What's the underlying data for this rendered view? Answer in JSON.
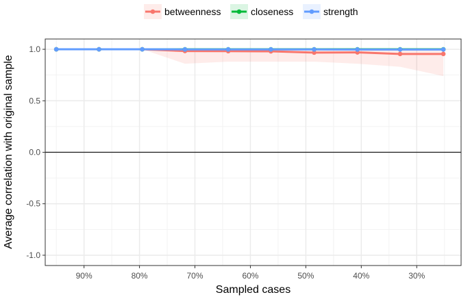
{
  "chart_data": {
    "type": "line",
    "xlabel": "Sampled cases",
    "ylabel": "Average correlation with original sample",
    "x_ticks": [
      {
        "value": 0.9,
        "label": "90%"
      },
      {
        "value": 0.8,
        "label": "80%"
      },
      {
        "value": 0.7,
        "label": "70%"
      },
      {
        "value": 0.6,
        "label": "60%"
      },
      {
        "value": 0.5,
        "label": "50%"
      },
      {
        "value": 0.4,
        "label": "40%"
      },
      {
        "value": 0.3,
        "label": "30%"
      }
    ],
    "y_ticks": [
      {
        "value": 1.0,
        "label": "1.0"
      },
      {
        "value": 0.5,
        "label": "0.5"
      },
      {
        "value": 0.0,
        "label": "0.0"
      },
      {
        "value": -0.5,
        "label": "-0.5"
      },
      {
        "value": -1.0,
        "label": "-1.0"
      }
    ],
    "xlim": [
      0.97,
      0.22
    ],
    "ylim": [
      -1.1,
      1.1
    ],
    "x": [
      0.95,
      0.873,
      0.795,
      0.718,
      0.64,
      0.563,
      0.485,
      0.407,
      0.33,
      0.252
    ],
    "series": [
      {
        "name": "betweenness",
        "color": "#f8766d",
        "values": [
          1.0,
          1.0,
          1.0,
          0.983,
          0.982,
          0.98,
          0.968,
          0.97,
          0.955,
          0.955
        ],
        "band_low": [
          1.0,
          1.0,
          1.0,
          0.86,
          0.88,
          0.88,
          0.88,
          0.86,
          0.83,
          0.74
        ],
        "band_high": [
          1.0,
          1.0,
          1.0,
          0.995,
          0.995,
          0.995,
          0.99,
          0.99,
          0.99,
          0.985
        ]
      },
      {
        "name": "closeness",
        "color": "#00ba38",
        "values": [
          1.0,
          1.0,
          1.0,
          1.0,
          1.0,
          1.0,
          1.0,
          1.0,
          1.0,
          1.0
        ],
        "band_low": [
          1.0,
          1.0,
          1.0,
          1.0,
          1.0,
          1.0,
          1.0,
          1.0,
          1.0,
          1.0
        ],
        "band_high": [
          1.0,
          1.0,
          1.0,
          1.0,
          1.0,
          1.0,
          1.0,
          1.0,
          1.0,
          1.0
        ]
      },
      {
        "name": "strength",
        "color": "#619cff",
        "values": [
          1.0,
          1.0,
          1.0,
          0.999,
          0.999,
          0.999,
          0.999,
          0.998,
          0.998,
          0.998
        ],
        "band_low": [
          1.0,
          1.0,
          1.0,
          0.997,
          0.997,
          0.996,
          0.995,
          0.994,
          0.993,
          0.992
        ],
        "band_high": [
          1.0,
          1.0,
          1.0,
          1.0,
          1.0,
          1.0,
          1.0,
          1.0,
          1.0,
          1.0
        ]
      }
    ],
    "reference_line": 0.0,
    "grid": true,
    "legend_position": "top"
  }
}
